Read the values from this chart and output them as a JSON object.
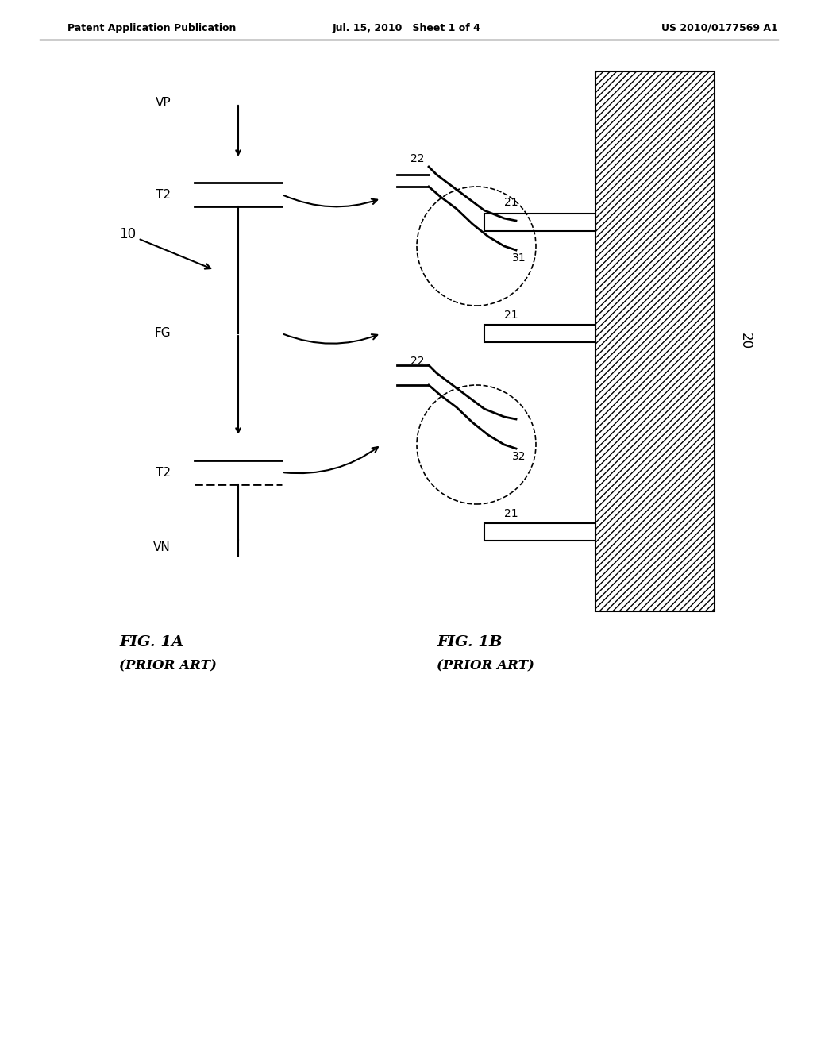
{
  "header_left": "Patent Application Publication",
  "header_center": "Jul. 15, 2010   Sheet 1 of 4",
  "header_right": "US 2010/0177569 A1",
  "fig1a_label": "FIG. 1A",
  "fig1a_sublabel": "(PRIOR ART)",
  "fig1b_label": "FIG. 1B",
  "fig1b_sublabel": "(PRIOR ART)",
  "label_10": "10",
  "label_20": "20",
  "label_VP": "VP",
  "label_FG": "FG",
  "label_VN": "VN",
  "label_T2_top": "T2",
  "label_T2_bot": "T2",
  "label_21_top": "21",
  "label_21_mid": "21",
  "label_22_top": "22",
  "label_22_bot": "22",
  "label_31": "31",
  "label_32": "32",
  "background_color": "#ffffff",
  "line_color": "#000000"
}
